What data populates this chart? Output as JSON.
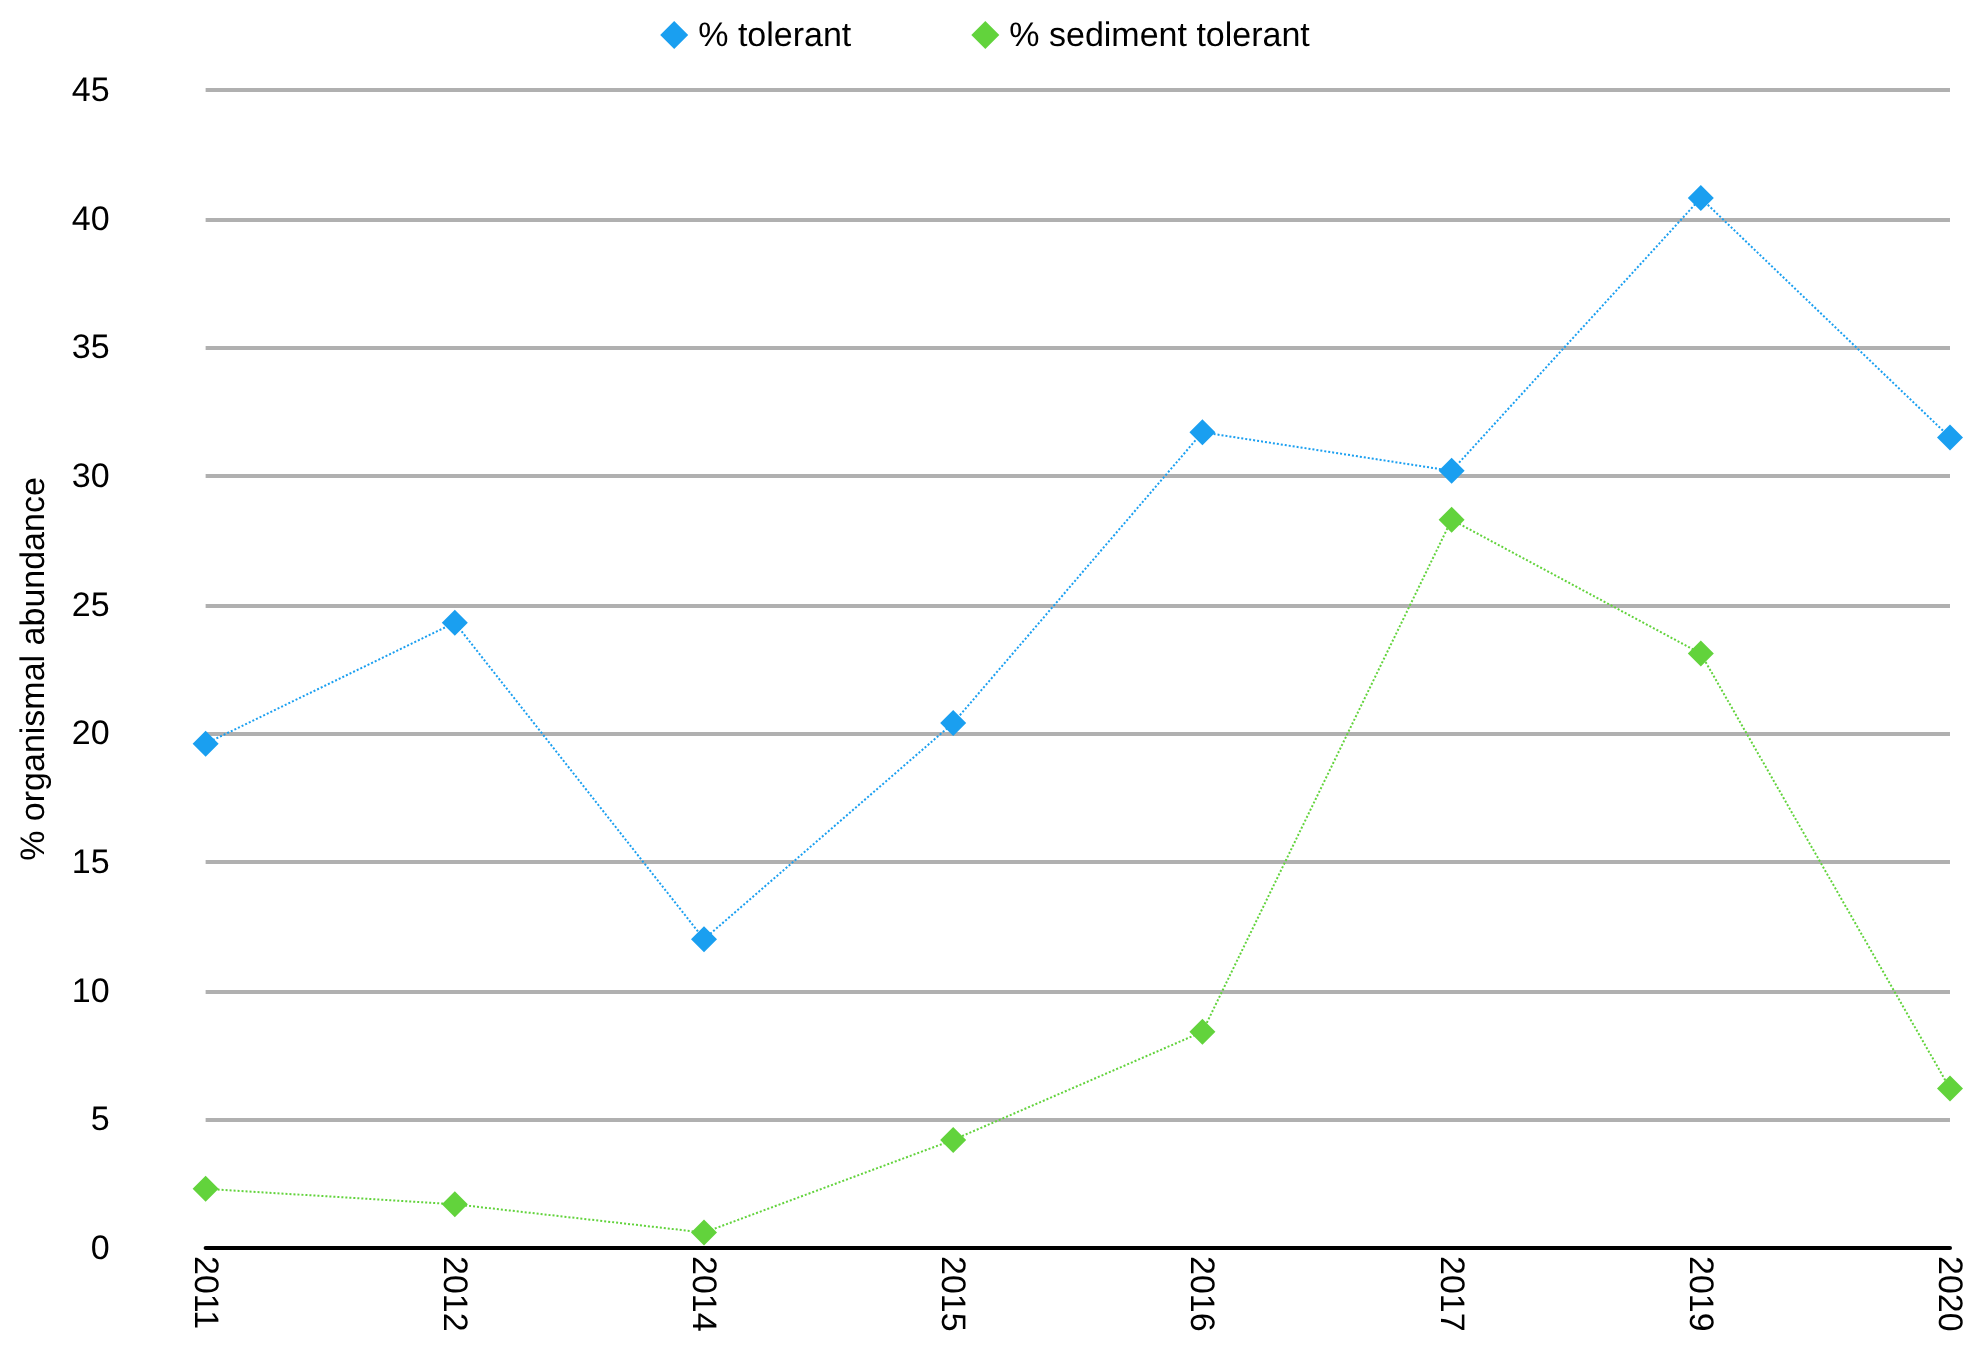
{
  "chart_data": {
    "type": "line",
    "ylabel": "% organismal abundance",
    "categories": [
      "2011",
      "2012",
      "2014",
      "2015",
      "2016",
      "2017",
      "2019",
      "2020"
    ],
    "series": [
      {
        "name": "% tolerant",
        "color": "#1a9ff0",
        "values": [
          19.6,
          24.3,
          12.0,
          20.4,
          31.7,
          30.2,
          40.8,
          31.5
        ]
      },
      {
        "name": "% sediment tolerant",
        "color": "#62d33c",
        "values": [
          2.3,
          1.7,
          0.6,
          4.2,
          8.4,
          28.3,
          23.1,
          6.2
        ]
      }
    ],
    "ylim": [
      0,
      45
    ],
    "yticks": [
      0,
      5,
      10,
      15,
      20,
      25,
      30,
      35,
      40,
      45
    ],
    "grid": "y",
    "legend": "top",
    "marker": "diamond",
    "line_style": "dotted"
  }
}
